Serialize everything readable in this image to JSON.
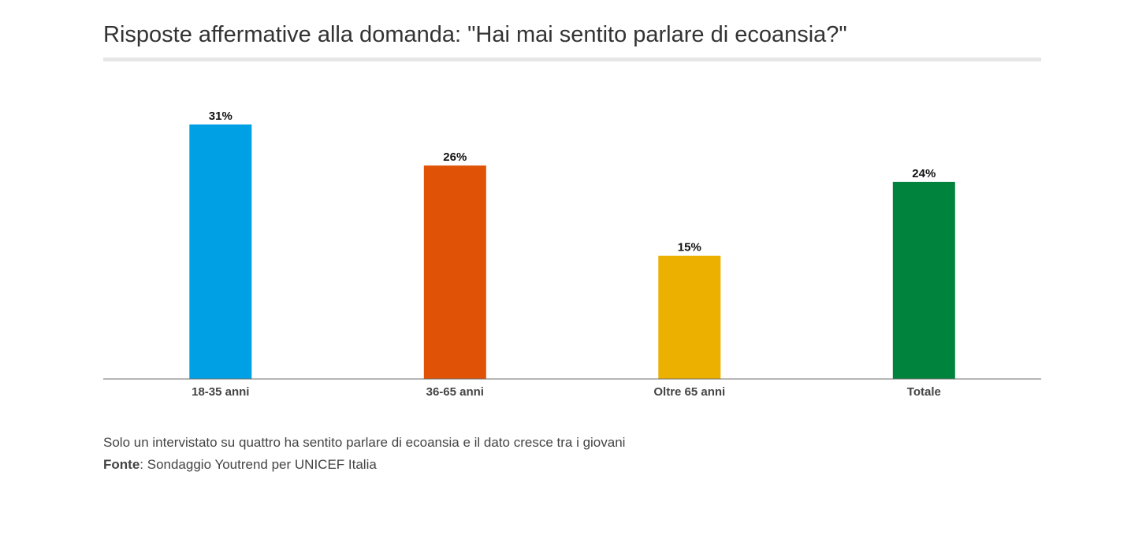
{
  "chart_data": {
    "type": "bar",
    "title": "Risposte affermative alla domanda: \"Hai mai sentito parlare di ecoansia?\"",
    "categories": [
      "18-35 anni",
      "36-65 anni",
      "Oltre 65 anni",
      "Totale"
    ],
    "values": [
      31,
      26,
      15,
      24
    ],
    "value_labels": [
      "31%",
      "26%",
      "15%",
      "24%"
    ],
    "colors": [
      "#00a1e4",
      "#e05206",
      "#ecb000",
      "#00843d"
    ],
    "ylim": [
      0,
      31
    ],
    "grid": false,
    "legend": "none",
    "xlabel": "",
    "ylabel": ""
  },
  "caption": {
    "text": "Solo un intervistato su quattro ha sentito parlare di ecoansia e il dato cresce tra i giovani",
    "source_label": "Fonte",
    "source_text": ": Sondaggio Youtrend per UNICEF Italia"
  }
}
